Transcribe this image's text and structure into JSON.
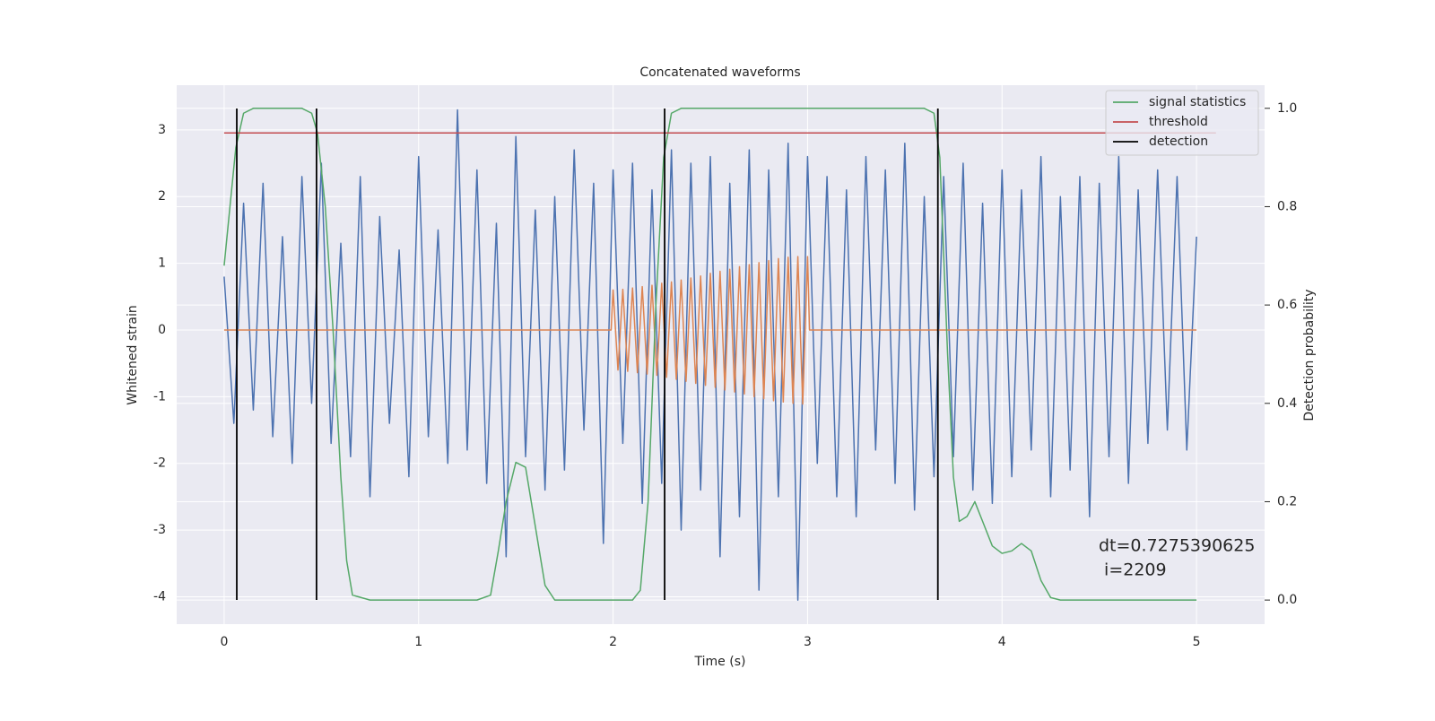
{
  "chart_data": {
    "type": "line",
    "title": "Concatenated waveforms",
    "xlabel": "Time (s)",
    "ylabel": "Whitened strain",
    "y2label": "Detection probability",
    "xlim": [
      -0.244,
      5.35
    ],
    "ylim": [
      -4.41,
      3.67
    ],
    "y2lim": [
      -0.049,
      1.047
    ],
    "xticks": [
      0,
      1,
      2,
      3,
      4,
      5
    ],
    "yticks": [
      -4,
      -3,
      -2,
      -1,
      0,
      1,
      2,
      3
    ],
    "y2ticks": [
      {
        "value": 0,
        "label": "0.0"
      },
      0.2,
      0.4,
      0.6,
      0.8,
      {
        "value": 1,
        "label": "1.0"
      }
    ],
    "grid": true,
    "legend": "upper right",
    "series": [
      {
        "color": "#4c72b0",
        "x": [
          0,
          0.05,
          0.1,
          0.15,
          0.2,
          0.25,
          0.3,
          0.35,
          0.4,
          0.45,
          0.5,
          0.55,
          0.6,
          0.65,
          0.7,
          0.75,
          0.8,
          0.85,
          0.9,
          0.95,
          1,
          1.05,
          1.1,
          1.15,
          1.2,
          1.25,
          1.3,
          1.35,
          1.4,
          1.45,
          1.5,
          1.55,
          1.6,
          1.65,
          1.7,
          1.75,
          1.8,
          1.85,
          1.9,
          1.95,
          2,
          2.05,
          2.1,
          2.15,
          2.2,
          2.25,
          2.3,
          2.35,
          2.4,
          2.45,
          2.5,
          2.55,
          2.6,
          2.65,
          2.7,
          2.75,
          2.8,
          2.85,
          2.9,
          2.95,
          3,
          3.05,
          3.1,
          3.15,
          3.2,
          3.25,
          3.3,
          3.35,
          3.4,
          3.45,
          3.5,
          3.55,
          3.6,
          3.65,
          3.7,
          3.75,
          3.8,
          3.85,
          3.9,
          3.95,
          4,
          4.05,
          4.1,
          4.15,
          4.2,
          4.25,
          4.3,
          4.35,
          4.4,
          4.45,
          4.5,
          4.55,
          4.6,
          4.65,
          4.7,
          4.75,
          4.8,
          4.85,
          4.9,
          4.95,
          5
        ],
        "values": [
          0.8,
          -1.4,
          1.9,
          -1.2,
          2.2,
          -1.6,
          1.4,
          -2.0,
          2.3,
          -1.1,
          2.5,
          -1.7,
          1.3,
          -1.9,
          2.3,
          -2.5,
          1.7,
          -1.4,
          1.2,
          -2.2,
          2.6,
          -1.6,
          1.5,
          -2.0,
          3.3,
          -1.8,
          2.4,
          -2.3,
          1.6,
          -3.4,
          2.9,
          -1.9,
          1.8,
          -2.4,
          2.0,
          -2.1,
          2.7,
          -1.5,
          2.2,
          -3.2,
          2.4,
          -1.7,
          2.5,
          -2.6,
          2.1,
          -2.3,
          2.7,
          -3.0,
          2.5,
          -2.4,
          2.6,
          -3.4,
          2.2,
          -2.8,
          2.7,
          -3.9,
          2.4,
          -2.5,
          2.8,
          -4.05,
          2.6,
          -2.0,
          2.3,
          -2.5,
          2.1,
          -2.8,
          2.6,
          -1.8,
          2.4,
          -2.3,
          2.8,
          -2.7,
          2.0,
          -2.2,
          2.3,
          -1.9,
          2.5,
          -2.4,
          1.9,
          -2.6,
          2.4,
          -2.2,
          2.1,
          -1.8,
          2.6,
          -2.5,
          2.0,
          -2.1,
          2.3,
          -2.8,
          2.2,
          -1.9,
          2.6,
          -2.3,
          2.1,
          -1.7,
          2.4,
          -1.5,
          2.3,
          -1.8,
          1.4
        ]
      },
      {
        "color": "#dd8452",
        "x": [
          0,
          1.99,
          2,
          2.025,
          2.05,
          2.075,
          2.1,
          2.125,
          2.15,
          2.175,
          2.2,
          2.225,
          2.25,
          2.275,
          2.3,
          2.325,
          2.35,
          2.375,
          2.4,
          2.425,
          2.45,
          2.475,
          2.5,
          2.525,
          2.55,
          2.575,
          2.6,
          2.625,
          2.65,
          2.675,
          2.7,
          2.725,
          2.75,
          2.775,
          2.8,
          2.825,
          2.85,
          2.875,
          2.9,
          2.925,
          2.95,
          2.975,
          3,
          3.01,
          5
        ],
        "values": [
          0,
          0,
          0.6,
          -0.6,
          0.61,
          -0.62,
          0.63,
          -0.64,
          0.65,
          -0.66,
          0.67,
          -0.68,
          0.7,
          -0.71,
          0.72,
          -0.74,
          0.75,
          -0.77,
          0.78,
          -0.8,
          0.81,
          -0.83,
          0.85,
          -0.86,
          0.88,
          -0.9,
          0.91,
          -0.93,
          0.95,
          -0.96,
          0.98,
          -1.0,
          1.01,
          -1.03,
          1.04,
          -1.06,
          1.07,
          -1.08,
          1.09,
          -1.1,
          1.1,
          -1.11,
          1.1,
          0,
          0
        ]
      },
      {
        "name": "signal statistics",
        "color": "#55a868",
        "axis": "y2",
        "x": [
          0,
          0.03,
          0.06,
          0.1,
          0.15,
          0.4,
          0.45,
          0.48,
          0.52,
          0.56,
          0.6,
          0.63,
          0.66,
          0.75,
          1.3,
          1.37,
          1.41,
          1.45,
          1.5,
          1.55,
          1.6,
          1.65,
          1.7,
          2.1,
          2.14,
          2.18,
          2.22,
          2.26,
          2.3,
          2.35,
          3.6,
          3.65,
          3.68,
          3.72,
          3.75,
          3.78,
          3.82,
          3.86,
          3.9,
          3.95,
          4,
          4.05,
          4.1,
          4.15,
          4.2,
          4.25,
          4.3,
          5
        ],
        "values": [
          0.68,
          0.8,
          0.92,
          0.99,
          1.0,
          1.0,
          0.99,
          0.95,
          0.8,
          0.55,
          0.25,
          0.08,
          0.01,
          0.0,
          0.0,
          0.01,
          0.1,
          0.2,
          0.28,
          0.27,
          0.15,
          0.03,
          0.0,
          0.0,
          0.02,
          0.2,
          0.6,
          0.9,
          0.99,
          1.0,
          1.0,
          0.99,
          0.9,
          0.5,
          0.25,
          0.16,
          0.17,
          0.2,
          0.16,
          0.11,
          0.095,
          0.1,
          0.115,
          0.1,
          0.04,
          0.005,
          0.0,
          0.0
        ]
      },
      {
        "name": "threshold",
        "color": "#c44e52",
        "axis": "y2",
        "x": [
          0,
          5.1
        ],
        "values": [
          0.95,
          0.95
        ]
      }
    ],
    "detection": {
      "name": "detection",
      "color": "#000000",
      "x": [
        0.065,
        0.475,
        2.265,
        3.67
      ]
    },
    "annotation": [
      "dt=0.7275390625",
      " i=2209"
    ]
  }
}
